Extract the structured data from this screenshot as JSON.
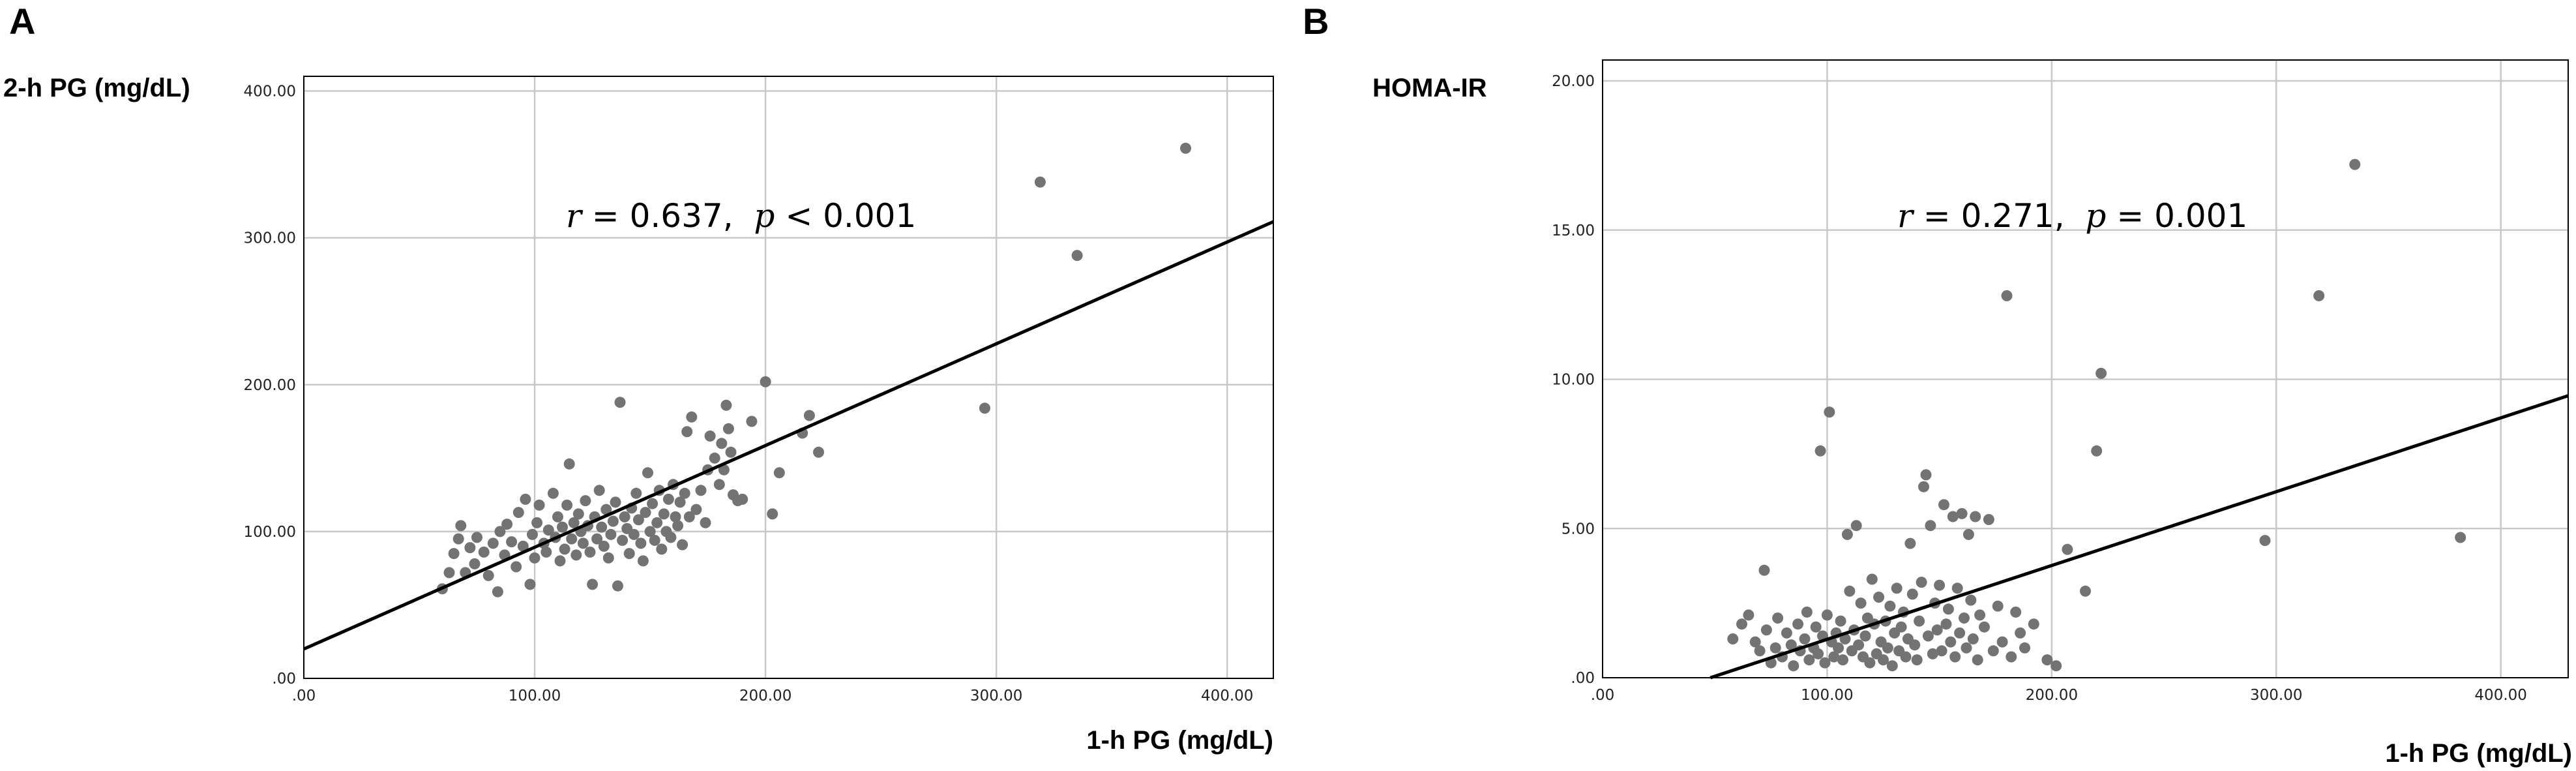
{
  "chart_data": [
    {
      "type": "scatter",
      "panel_label": "A",
      "xlabel": "1-h PG (mg/dL)",
      "ylabel": "2-h PG (mg/dL)",
      "xlim": [
        0,
        420
      ],
      "ylim": [
        0,
        410
      ],
      "xticks": [
        ".00",
        "100.00",
        "200.00",
        "300.00",
        "400.00"
      ],
      "yticks": [
        ".00",
        "100.00",
        "200.00",
        "300.00",
        "400.00"
      ],
      "grid": true,
      "annotation": {
        "r_label": "r",
        "r_text": " = 0.637,  ",
        "p_label": "p",
        "p_text": " < 0.001"
      },
      "fit_line": {
        "x": [
          0,
          420
        ],
        "y": [
          20,
          311
        ]
      },
      "points": [
        [
          60,
          61
        ],
        [
          63,
          72
        ],
        [
          65,
          85
        ],
        [
          67,
          95
        ],
        [
          68,
          104
        ],
        [
          70,
          72
        ],
        [
          72,
          89
        ],
        [
          74,
          78
        ],
        [
          75,
          96
        ],
        [
          78,
          86
        ],
        [
          80,
          70
        ],
        [
          82,
          92
        ],
        [
          84,
          59
        ],
        [
          85,
          100
        ],
        [
          87,
          84
        ],
        [
          88,
          105
        ],
        [
          90,
          93
        ],
        [
          92,
          76
        ],
        [
          93,
          113
        ],
        [
          95,
          90
        ],
        [
          96,
          122
        ],
        [
          98,
          64
        ],
        [
          99,
          98
        ],
        [
          100,
          82
        ],
        [
          101,
          106
        ],
        [
          102,
          118
        ],
        [
          104,
          92
        ],
        [
          105,
          86
        ],
        [
          106,
          101
        ],
        [
          108,
          126
        ],
        [
          109,
          96
        ],
        [
          110,
          110
        ],
        [
          111,
          80
        ],
        [
          112,
          103
        ],
        [
          113,
          88
        ],
        [
          114,
          118
        ],
        [
          115,
          146
        ],
        [
          116,
          95
        ],
        [
          117,
          106
        ],
        [
          118,
          84
        ],
        [
          119,
          112
        ],
        [
          120,
          100
        ],
        [
          121,
          92
        ],
        [
          122,
          121
        ],
        [
          123,
          104
        ],
        [
          124,
          86
        ],
        [
          125,
          64
        ],
        [
          126,
          110
        ],
        [
          127,
          95
        ],
        [
          128,
          128
        ],
        [
          129,
          103
        ],
        [
          130,
          90
        ],
        [
          131,
          115
        ],
        [
          132,
          82
        ],
        [
          133,
          98
        ],
        [
          134,
          107
        ],
        [
          135,
          120
        ],
        [
          136,
          63
        ],
        [
          137,
          188
        ],
        [
          138,
          94
        ],
        [
          139,
          110
        ],
        [
          140,
          102
        ],
        [
          141,
          85
        ],
        [
          142,
          116
        ],
        [
          143,
          98
        ],
        [
          144,
          126
        ],
        [
          145,
          108
        ],
        [
          146,
          92
        ],
        [
          147,
          80
        ],
        [
          148,
          113
        ],
        [
          149,
          140
        ],
        [
          150,
          100
        ],
        [
          151,
          119
        ],
        [
          152,
          94
        ],
        [
          153,
          106
        ],
        [
          154,
          128
        ],
        [
          155,
          88
        ],
        [
          156,
          112
        ],
        [
          157,
          100
        ],
        [
          158,
          122
        ],
        [
          159,
          96
        ],
        [
          160,
          132
        ],
        [
          161,
          110
        ],
        [
          162,
          104
        ],
        [
          163,
          120
        ],
        [
          164,
          91
        ],
        [
          165,
          126
        ],
        [
          166,
          168
        ],
        [
          167,
          110
        ],
        [
          168,
          178
        ],
        [
          170,
          115
        ],
        [
          172,
          128
        ],
        [
          174,
          106
        ],
        [
          175,
          142
        ],
        [
          176,
          165
        ],
        [
          178,
          150
        ],
        [
          180,
          132
        ],
        [
          181,
          160
        ],
        [
          182,
          142
        ],
        [
          183,
          186
        ],
        [
          184,
          170
        ],
        [
          185,
          154
        ],
        [
          186,
          125
        ],
        [
          188,
          121
        ],
        [
          190,
          122
        ],
        [
          194,
          175
        ],
        [
          200,
          202
        ],
        [
          203,
          112
        ],
        [
          206,
          140
        ],
        [
          216,
          167
        ],
        [
          219,
          179
        ],
        [
          223,
          154
        ],
        [
          295,
          184
        ],
        [
          319,
          338
        ],
        [
          335,
          288
        ],
        [
          382,
          361
        ]
      ]
    },
    {
      "type": "scatter",
      "panel_label": "B",
      "xlabel": "1-h PG (mg/dL)",
      "ylabel": "HOMA-IR",
      "xlim": [
        0,
        430
      ],
      "ylim": [
        0,
        20.7
      ],
      "xticks": [
        ".00",
        "100.00",
        "200.00",
        "300.00",
        "400.00"
      ],
      "yticks": [
        ".00",
        "5.00",
        "10.00",
        "15.00",
        "20.00"
      ],
      "grid": true,
      "annotation": {
        "r_label": "r",
        "r_text": " = 0.271,  ",
        "p_label": "p",
        "p_text": " = 0.001"
      },
      "fit_line": {
        "x": [
          48,
          430
        ],
        "y": [
          0,
          9.45
        ]
      },
      "points": [
        [
          58,
          1.3
        ],
        [
          62,
          1.8
        ],
        [
          65,
          2.1
        ],
        [
          68,
          1.2
        ],
        [
          70,
          0.9
        ],
        [
          72,
          3.6
        ],
        [
          73,
          1.6
        ],
        [
          75,
          0.5
        ],
        [
          77,
          1.0
        ],
        [
          78,
          2.0
        ],
        [
          80,
          0.7
        ],
        [
          82,
          1.5
        ],
        [
          84,
          1.1
        ],
        [
          85,
          0.4
        ],
        [
          87,
          1.8
        ],
        [
          88,
          0.9
        ],
        [
          90,
          1.3
        ],
        [
          91,
          2.2
        ],
        [
          92,
          0.6
        ],
        [
          94,
          1.0
        ],
        [
          95,
          1.7
        ],
        [
          96,
          0.8
        ],
        [
          97,
          7.6
        ],
        [
          98,
          1.4
        ],
        [
          99,
          0.5
        ],
        [
          100,
          2.1
        ],
        [
          101,
          8.9
        ],
        [
          102,
          1.2
        ],
        [
          103,
          0.7
        ],
        [
          104,
          1.5
        ],
        [
          105,
          1.0
        ],
        [
          106,
          1.9
        ],
        [
          107,
          0.6
        ],
        [
          108,
          1.3
        ],
        [
          109,
          4.8
        ],
        [
          110,
          2.9
        ],
        [
          111,
          0.9
        ],
        [
          112,
          1.6
        ],
        [
          113,
          5.1
        ],
        [
          114,
          1.1
        ],
        [
          115,
          2.5
        ],
        [
          116,
          0.7
        ],
        [
          117,
          1.4
        ],
        [
          118,
          2.0
        ],
        [
          119,
          0.5
        ],
        [
          120,
          3.3
        ],
        [
          121,
          1.8
        ],
        [
          122,
          0.8
        ],
        [
          123,
          2.7
        ],
        [
          124,
          1.2
        ],
        [
          125,
          0.6
        ],
        [
          126,
          1.9
        ],
        [
          127,
          1.0
        ],
        [
          128,
          2.4
        ],
        [
          129,
          0.4
        ],
        [
          130,
          1.5
        ],
        [
          131,
          3.0
        ],
        [
          132,
          0.9
        ],
        [
          133,
          1.7
        ],
        [
          134,
          2.2
        ],
        [
          135,
          0.7
        ],
        [
          136,
          1.3
        ],
        [
          137,
          4.5
        ],
        [
          138,
          2.8
        ],
        [
          139,
          1.1
        ],
        [
          140,
          0.6
        ],
        [
          141,
          1.9
        ],
        [
          142,
          3.2
        ],
        [
          143,
          6.4
        ],
        [
          144,
          6.8
        ],
        [
          145,
          1.4
        ],
        [
          146,
          5.1
        ],
        [
          147,
          0.8
        ],
        [
          148,
          2.5
        ],
        [
          149,
          1.6
        ],
        [
          150,
          3.1
        ],
        [
          151,
          0.9
        ],
        [
          152,
          5.8
        ],
        [
          153,
          1.8
        ],
        [
          154,
          2.3
        ],
        [
          155,
          1.2
        ],
        [
          156,
          5.4
        ],
        [
          157,
          0.7
        ],
        [
          158,
          3.0
        ],
        [
          159,
          1.5
        ],
        [
          160,
          5.5
        ],
        [
          161,
          2.0
        ],
        [
          162,
          1.0
        ],
        [
          163,
          4.8
        ],
        [
          164,
          2.6
        ],
        [
          165,
          1.3
        ],
        [
          166,
          5.4
        ],
        [
          167,
          0.6
        ],
        [
          168,
          2.1
        ],
        [
          170,
          1.7
        ],
        [
          172,
          5.3
        ],
        [
          174,
          0.9
        ],
        [
          176,
          2.4
        ],
        [
          178,
          1.2
        ],
        [
          180,
          12.8
        ],
        [
          182,
          0.7
        ],
        [
          184,
          2.2
        ],
        [
          186,
          1.5
        ],
        [
          188,
          1.0
        ],
        [
          192,
          1.8
        ],
        [
          198,
          0.6
        ],
        [
          202,
          0.4
        ],
        [
          207,
          4.3
        ],
        [
          215,
          2.9
        ],
        [
          220,
          7.6
        ],
        [
          222,
          10.2
        ],
        [
          295,
          4.6
        ],
        [
          319,
          12.8
        ],
        [
          335,
          17.2
        ],
        [
          382,
          4.7
        ]
      ]
    }
  ]
}
